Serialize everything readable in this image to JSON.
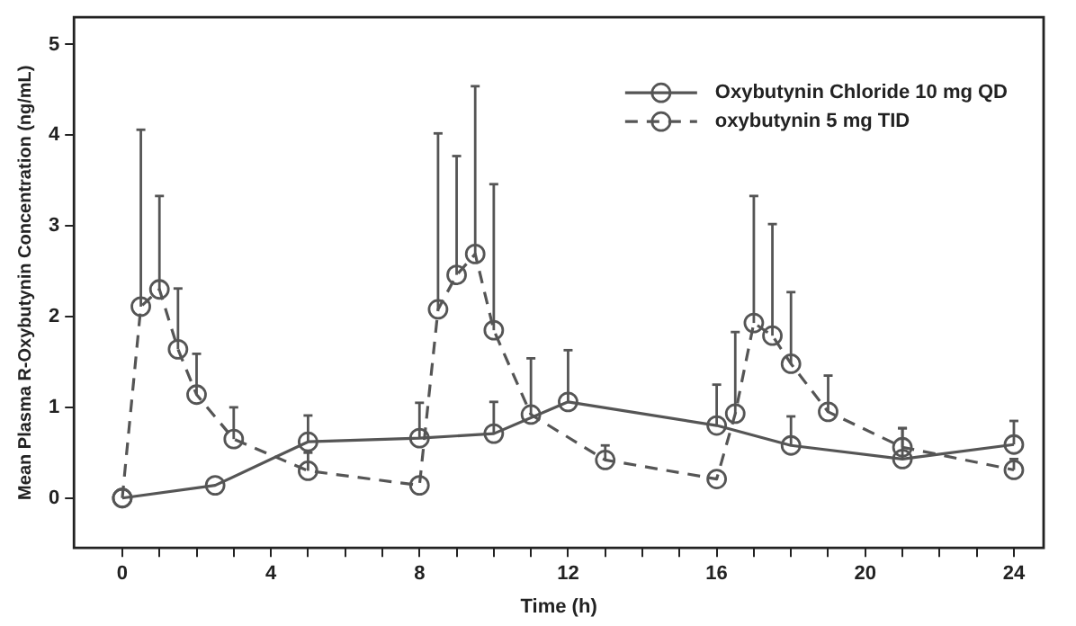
{
  "chart_data": {
    "type": "line",
    "xlabel": "Time (h)",
    "ylabel": "Mean Plasma R-Oxybutynin Concentration (ng/mL)",
    "xlim": [
      -1.3,
      24.8
    ],
    "ylim": [
      -0.55,
      5.3
    ],
    "xticks": [
      0,
      {
        "value": 1,
        "label": null
      },
      {
        "value": 2,
        "label": null
      },
      {
        "value": 3,
        "label": null
      },
      4,
      {
        "value": 5,
        "label": null
      },
      {
        "value": 6,
        "label": null
      },
      {
        "value": 7,
        "label": null
      },
      8,
      {
        "value": 9,
        "label": null
      },
      {
        "value": 10,
        "label": null
      },
      {
        "value": 11,
        "label": null
      },
      12,
      {
        "value": 13,
        "label": null
      },
      {
        "value": 14,
        "label": null
      },
      {
        "value": 15,
        "label": null
      },
      16,
      {
        "value": 17,
        "label": null
      },
      {
        "value": 18,
        "label": null
      },
      {
        "value": 19,
        "label": null
      },
      20,
      {
        "value": 21,
        "label": null
      },
      {
        "value": 22,
        "label": null
      },
      {
        "value": 23,
        "label": null
      },
      24
    ],
    "yticks": [
      0,
      1,
      2,
      3,
      4,
      5
    ],
    "grid": false,
    "legend": "top right",
    "marker": "circle",
    "series": [
      {
        "name": "Oxybutynin Chloride 10 mg QD",
        "color": "#555555",
        "line_style": "solid",
        "x": [
          0,
          2.5,
          5,
          8,
          10,
          12,
          16,
          18,
          21,
          24
        ],
        "values": [
          0,
          0.14,
          0.62,
          0.66,
          0.71,
          1.06,
          0.8,
          0.58,
          0.43,
          0.59
        ],
        "errors": [
          null,
          null,
          [
            0.62,
            0.91
          ],
          [
            0.66,
            1.05
          ],
          [
            0.71,
            1.06
          ],
          [
            1.06,
            1.63
          ],
          [
            0.8,
            1.25
          ],
          [
            0.58,
            0.9
          ],
          [
            0.43,
            0.77
          ],
          [
            0.59,
            0.85
          ]
        ]
      },
      {
        "name": "oxybutynin 5 mg TID",
        "color": "#555555",
        "line_style": "dashed",
        "x": [
          0,
          0.5,
          1,
          1.5,
          2,
          3,
          5,
          8,
          8.5,
          9,
          9.5,
          10,
          11,
          13,
          16,
          16.5,
          17,
          17.5,
          18,
          19,
          21,
          24
        ],
        "values": [
          0,
          2.11,
          2.3,
          1.64,
          1.14,
          0.65,
          0.3,
          0.14,
          2.08,
          2.46,
          2.69,
          1.85,
          0.92,
          0.42,
          0.21,
          0.93,
          1.93,
          1.79,
          1.48,
          0.95,
          0.56,
          0.31
        ],
        "errors": [
          null,
          [
            2.11,
            4.06
          ],
          [
            2.3,
            3.33
          ],
          [
            1.64,
            2.31
          ],
          [
            1.14,
            1.59
          ],
          [
            0.65,
            1.0
          ],
          [
            0.3,
            0.5
          ],
          null,
          [
            2.08,
            4.02
          ],
          [
            2.46,
            3.77
          ],
          [
            2.69,
            4.54
          ],
          [
            1.85,
            3.46
          ],
          [
            0.92,
            1.54
          ],
          [
            0.42,
            0.58
          ],
          null,
          [
            0.93,
            1.83
          ],
          [
            1.93,
            3.33
          ],
          [
            1.79,
            3.02
          ],
          [
            1.48,
            2.27
          ],
          [
            0.95,
            1.35
          ],
          [
            0.56,
            0.77
          ],
          [
            0.31,
            0.43
          ]
        ]
      }
    ]
  }
}
